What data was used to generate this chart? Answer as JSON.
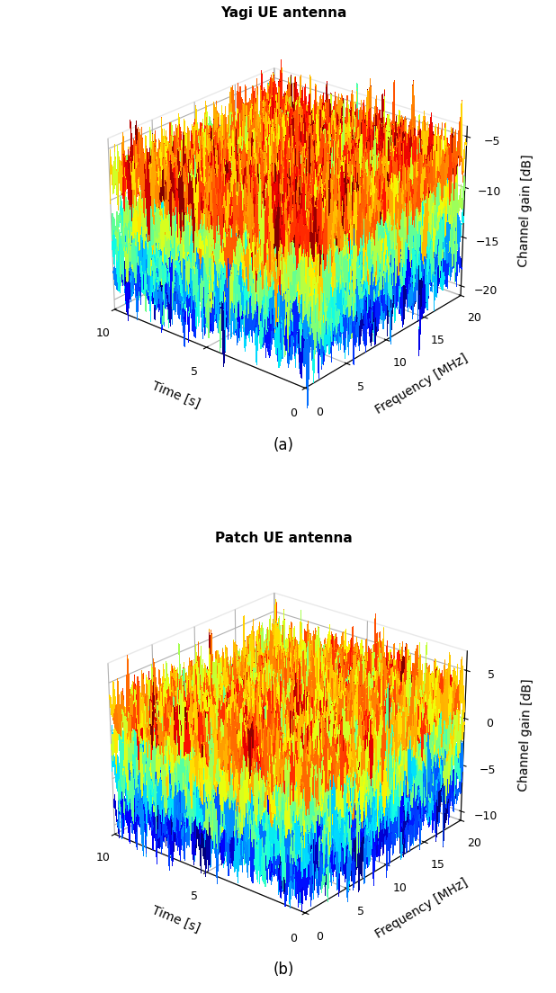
{
  "subplot_a": {
    "title": "Yagi UE antenna",
    "ylabel": "Channel gain [dB]",
    "xlabel_time": "Time [s]",
    "xlabel_freq": "Frequency [MHz]",
    "time_range": [
      0,
      10
    ],
    "freq_range": [
      0,
      20
    ],
    "zlim": [
      -21,
      -4
    ],
    "zticks": [
      -20,
      -15,
      -10,
      -5
    ],
    "time_ticks": [
      0,
      5,
      10
    ],
    "freq_ticks": [
      0,
      5,
      10,
      15,
      20
    ],
    "layer_means": [
      -7.5,
      -11.5,
      -14.5,
      -17.5
    ],
    "layer_noise": 1.8,
    "label": "(a)"
  },
  "subplot_b": {
    "title": "Patch UE antenna",
    "ylabel": "Channel gain [dB]",
    "xlabel_time": "Time [s]",
    "xlabel_freq": "Frequency [MHz]",
    "time_range": [
      0,
      10
    ],
    "freq_range": [
      0,
      20
    ],
    "zlim": [
      -11,
      7
    ],
    "zticks": [
      -10,
      -5,
      0,
      5
    ],
    "time_ticks": [
      0,
      5,
      10
    ],
    "freq_ticks": [
      0,
      5,
      10,
      15,
      20
    ],
    "layer_means": [
      2.0,
      -1.5,
      -5.0,
      -8.0
    ],
    "layer_noise": 1.8,
    "label": "(b)"
  },
  "n_time": 120,
  "n_freq": 120,
  "colormap": "jet",
  "seed": 42
}
